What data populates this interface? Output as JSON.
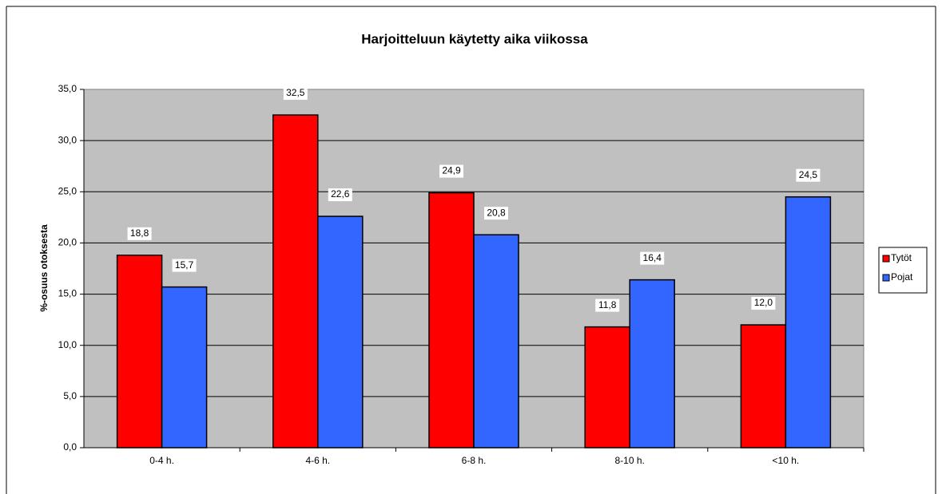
{
  "chart_data": {
    "type": "bar",
    "title": "Harjoitteluun käytetty aika viikossa",
    "y_label": "%-osuus otoksesta",
    "categories": [
      "0-4 h.",
      "4-6 h.",
      "6-8 h.",
      "8-10 h.",
      "<10 h."
    ],
    "series": [
      {
        "name": "Tytöt",
        "color": "#ff0000",
        "values": [
          18.8,
          32.5,
          24.9,
          11.8,
          12.0
        ],
        "value_labels": [
          "18,8",
          "32,5",
          "24,9",
          "11,8",
          "12,0"
        ]
      },
      {
        "name": "Pojat",
        "color": "#3366ff",
        "values": [
          15.7,
          22.6,
          20.8,
          16.4,
          24.5
        ],
        "value_labels": [
          "15,7",
          "22,6",
          "20,8",
          "16,4",
          "24,5"
        ]
      }
    ],
    "ylim": [
      0,
      35
    ],
    "yticks": [
      {
        "value": 0,
        "label": "0,0"
      },
      {
        "value": 5,
        "label": "5,0"
      },
      {
        "value": 10,
        "label": "10,0"
      },
      {
        "value": 15,
        "label": "15,0"
      },
      {
        "value": 20,
        "label": "20,0"
      },
      {
        "value": 25,
        "label": "25,0"
      },
      {
        "value": 30,
        "label": "30,0"
      },
      {
        "value": 35,
        "label": "35,0"
      }
    ],
    "grid": true,
    "legend": "right"
  }
}
